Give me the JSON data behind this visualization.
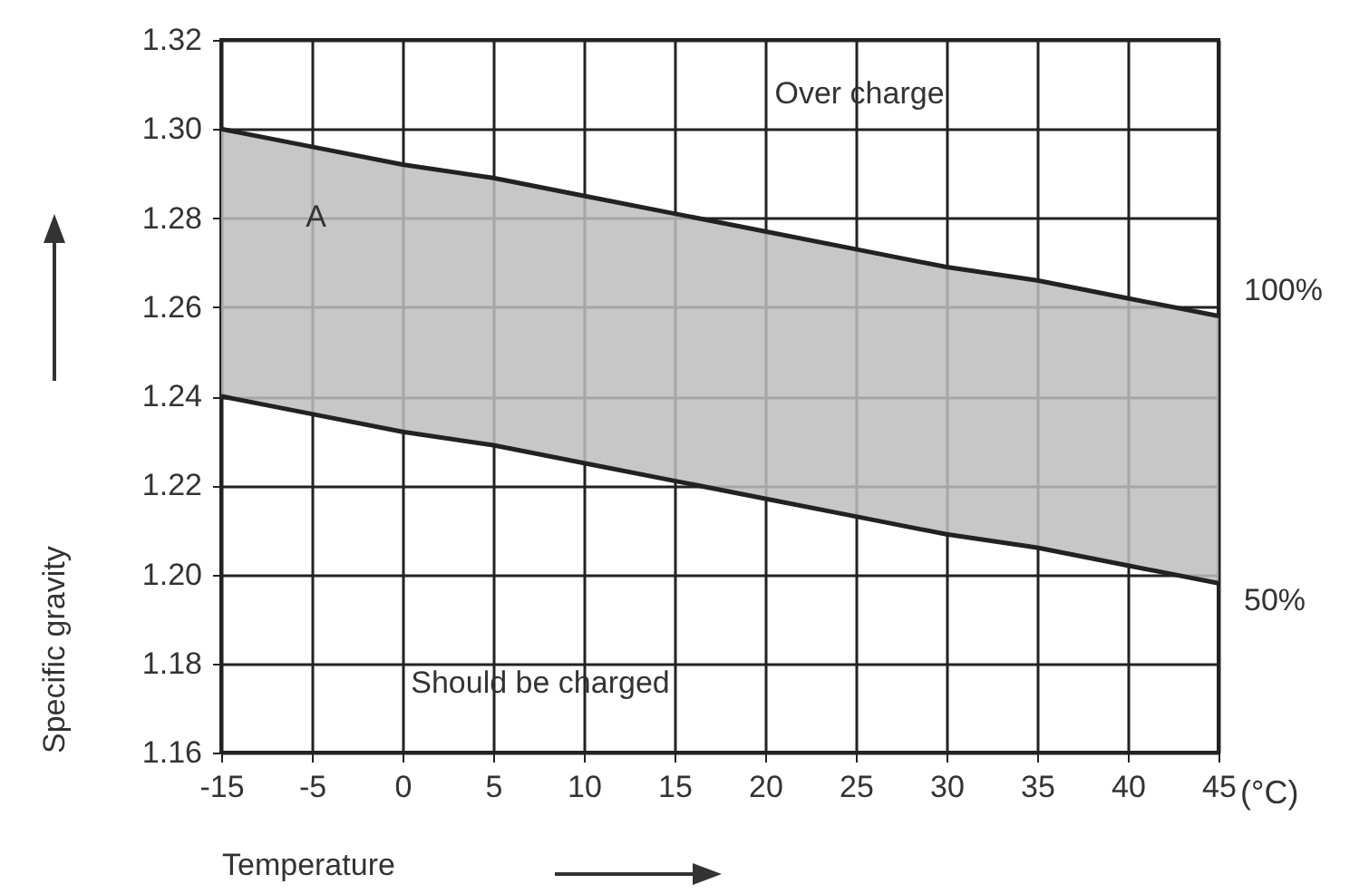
{
  "chart_data": {
    "type": "line",
    "xlabel": "Temperature",
    "ylabel": "Specific gravity",
    "categories": [
      "-15",
      "-5",
      "0",
      "5",
      "10",
      "15",
      "20",
      "25",
      "30",
      "35",
      "40",
      "45"
    ],
    "series": [
      {
        "name": "100%",
        "color": "#222222",
        "values": [
          1.3,
          1.296,
          1.292,
          1.289,
          1.285,
          1.281,
          1.277,
          1.273,
          1.269,
          1.266,
          1.262,
          1.258
        ],
        "lower": [
          1.24,
          1.236,
          1.232,
          1.229,
          1.225,
          1.221,
          1.217,
          1.213,
          1.209,
          1.206,
          1.202,
          1.198
        ],
        "upper": [
          1.3,
          1.296,
          1.292,
          1.289,
          1.285,
          1.281,
          1.277,
          1.273,
          1.269,
          1.266,
          1.262,
          1.258
        ]
      },
      {
        "name": "50%",
        "color": "#222222",
        "values": [
          1.24,
          1.236,
          1.232,
          1.229,
          1.225,
          1.221,
          1.217,
          1.213,
          1.209,
          1.206,
          1.202,
          1.198
        ]
      }
    ],
    "ylim": [
      1.16,
      1.32
    ],
    "yticks": [
      {
        "value": 1.16,
        "label": "1.16"
      },
      {
        "value": 1.18,
        "label": "1.18"
      },
      {
        "value": 1.2,
        "label": "1.20"
      },
      {
        "value": 1.22,
        "label": "1.22"
      },
      {
        "value": 1.24,
        "label": "1.24"
      },
      {
        "value": 1.26,
        "label": "1.26"
      },
      {
        "value": 1.28,
        "label": "1.28"
      },
      {
        "value": 1.3,
        "label": "1.30"
      },
      {
        "value": 1.32,
        "label": "1.32"
      }
    ],
    "grid": true,
    "annotations": [
      "Over charge",
      "Should be charged",
      "A",
      "(°C)"
    ]
  }
}
